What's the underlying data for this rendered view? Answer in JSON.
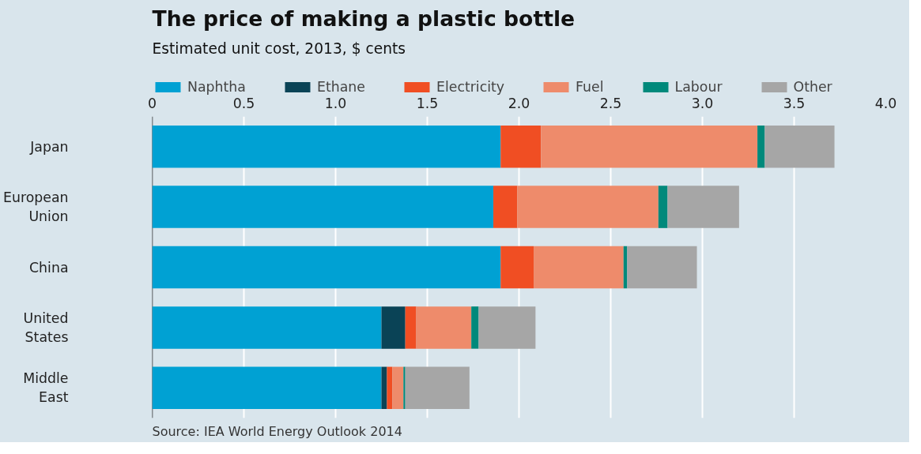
{
  "chart_data": {
    "type": "bar",
    "orientation": "horizontal",
    "stacked": true,
    "title": "The price of making a plastic bottle",
    "subtitle": "Estimated unit cost, 2013, $ cents",
    "categories": [
      "Japan",
      "European Union",
      "China",
      "United States",
      "Middle East"
    ],
    "series": [
      {
        "name": "Naphtha",
        "color": "#00a1d3",
        "values": [
          1.9,
          1.86,
          1.9,
          1.25,
          1.25
        ]
      },
      {
        "name": "Ethane",
        "color": "#0a4356",
        "values": [
          0,
          0,
          0,
          0.13,
          0.03
        ]
      },
      {
        "name": "Electricity",
        "color": "#f04e23",
        "values": [
          0.22,
          0.13,
          0.18,
          0.06,
          0.03
        ]
      },
      {
        "name": "Fuel",
        "color": "#ee8b6b",
        "values": [
          1.18,
          0.77,
          0.49,
          0.3,
          0.06
        ]
      },
      {
        "name": "Labour",
        "color": "#00897b",
        "values": [
          0.04,
          0.05,
          0.02,
          0.04,
          0.01
        ]
      },
      {
        "name": "Other",
        "color": "#a6a6a6",
        "values": [
          0.38,
          0.39,
          0.38,
          0.31,
          0.35
        ]
      }
    ],
    "xlim": [
      0,
      4
    ],
    "xticks": [
      0,
      0.5,
      {
        "value": 1,
        "label": "1.0"
      },
      1.5,
      {
        "value": 2,
        "label": "2.0"
      },
      2.5,
      {
        "value": 3,
        "label": "3.0"
      },
      3.5,
      {
        "value": 4,
        "label": "4.0"
      }
    ],
    "grid": "x",
    "legend": "top",
    "annotations": [
      "Source: IEA World Energy Outlook 2014"
    ]
  }
}
